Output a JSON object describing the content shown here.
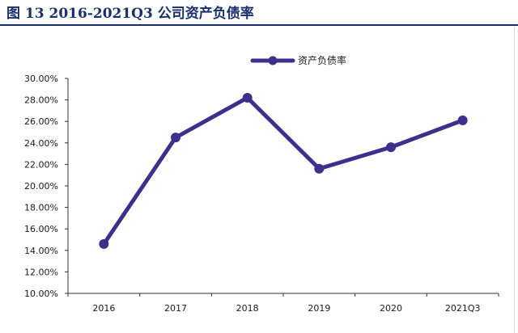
{
  "figure": {
    "title": "图 13 2016-2021Q3 公司资产负债率"
  },
  "colors": {
    "series": "#3f2f8c",
    "title": "#1a2f6e",
    "axis": "#333333"
  },
  "chart_data": {
    "type": "line",
    "title": "",
    "xlabel": "",
    "ylabel": "",
    "categories": [
      "2016",
      "2017",
      "2018",
      "2019",
      "2020",
      "2021Q3"
    ],
    "series": [
      {
        "name": "资产负债率",
        "values": [
          14.6,
          24.5,
          28.2,
          21.6,
          23.6,
          26.1
        ]
      }
    ],
    "ylim": [
      10,
      30
    ],
    "yticks": [
      10,
      12,
      14,
      16,
      18,
      20,
      22,
      24,
      26,
      28,
      30
    ],
    "ytick_labels": [
      "10.00%",
      "12.00%",
      "14.00%",
      "16.00%",
      "18.00%",
      "20.00%",
      "22.00%",
      "24.00%",
      "26.00%",
      "28.00%",
      "30.00%"
    ],
    "grid": false,
    "legend": "top-right"
  }
}
